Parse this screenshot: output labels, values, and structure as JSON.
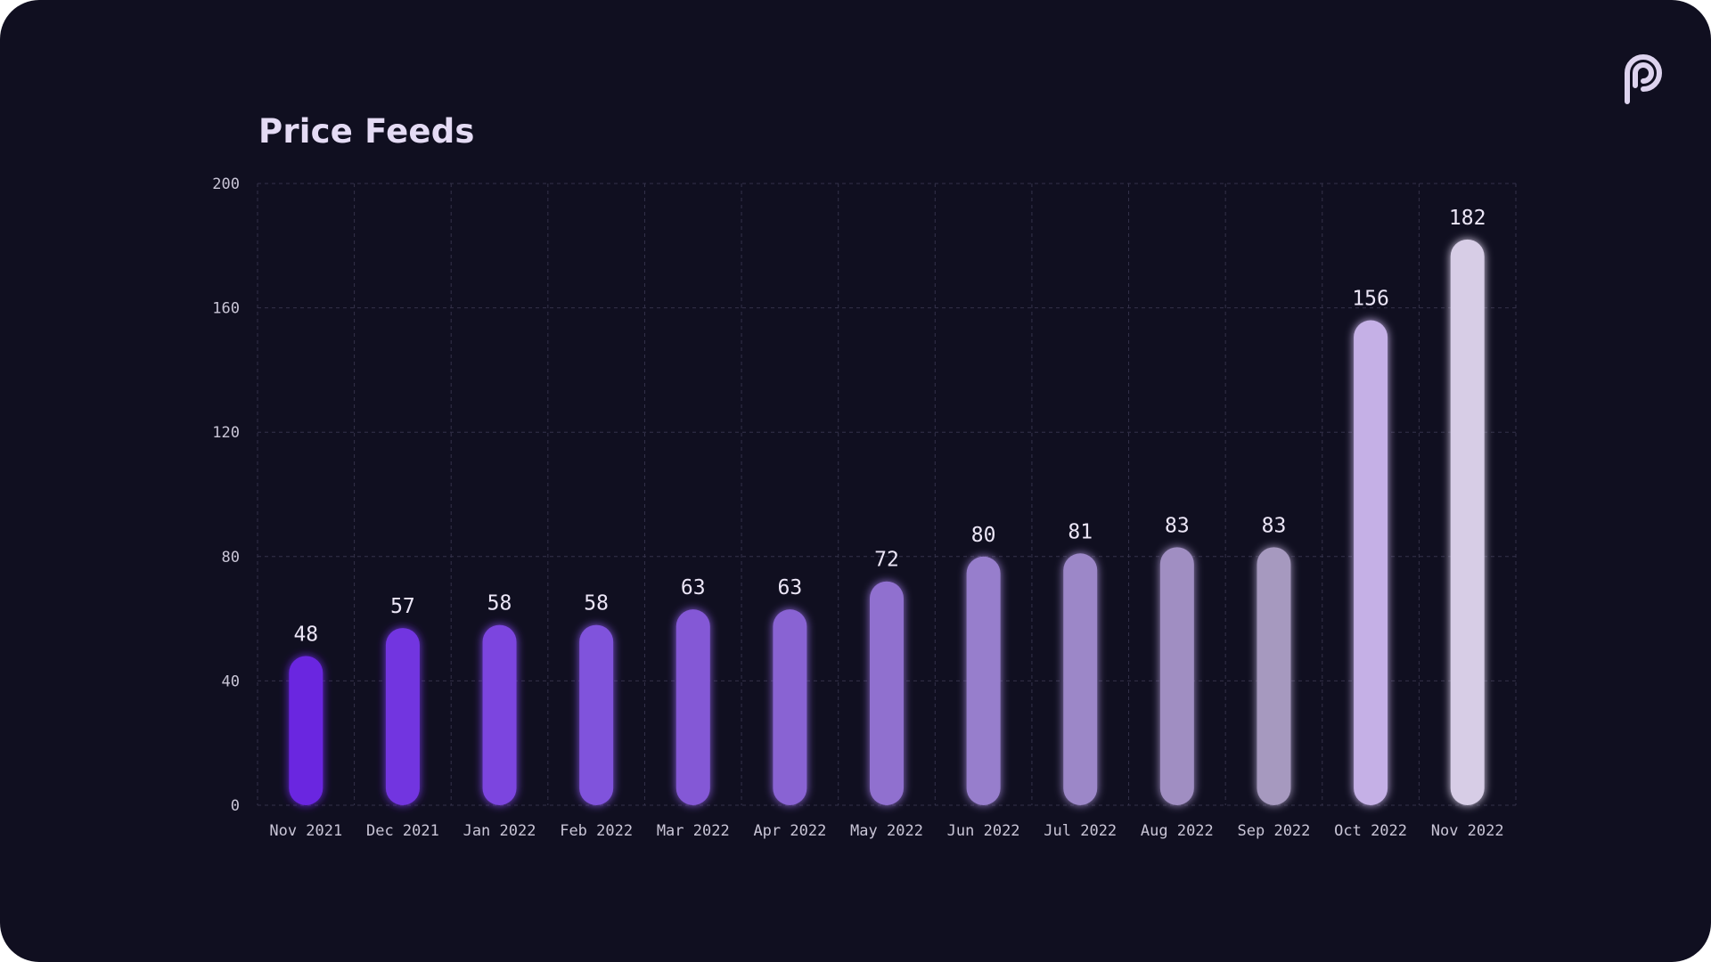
{
  "title": "Price Feeds",
  "logo_icon": "pyth-logo-icon",
  "colors": {
    "background": "#100f20",
    "grid": "#34324a",
    "bar_start": "#6a28e0",
    "bar_end": "#d7cde6"
  },
  "chart_data": {
    "type": "bar",
    "title": "Price Feeds",
    "xlabel": "",
    "ylabel": "",
    "categories": [
      "Nov 2021",
      "Dec 2021",
      "Jan 2022",
      "Feb 2022",
      "Mar 2022",
      "Apr 2022",
      "May 2022",
      "Jun 2022",
      "Jul 2022",
      "Aug 2022",
      "Sep 2022",
      "Oct 2022",
      "Nov 2022"
    ],
    "values": [
      48,
      57,
      58,
      58,
      63,
      63,
      72,
      80,
      81,
      83,
      83,
      156,
      182
    ],
    "bar_colors": [
      "#6a28e0",
      "#7236e0",
      "#7b45df",
      "#8052dc",
      "#8459d6",
      "#8963d3",
      "#906fcf",
      "#977ecc",
      "#9c87c8",
      "#a08ec2",
      "#a699bf",
      "#c5b0e6",
      "#d7cde6"
    ],
    "data_labels": true,
    "ylim": [
      0,
      200
    ],
    "yticks": [
      0,
      40,
      80,
      120,
      160,
      200
    ],
    "grid": true,
    "legend": "none"
  }
}
